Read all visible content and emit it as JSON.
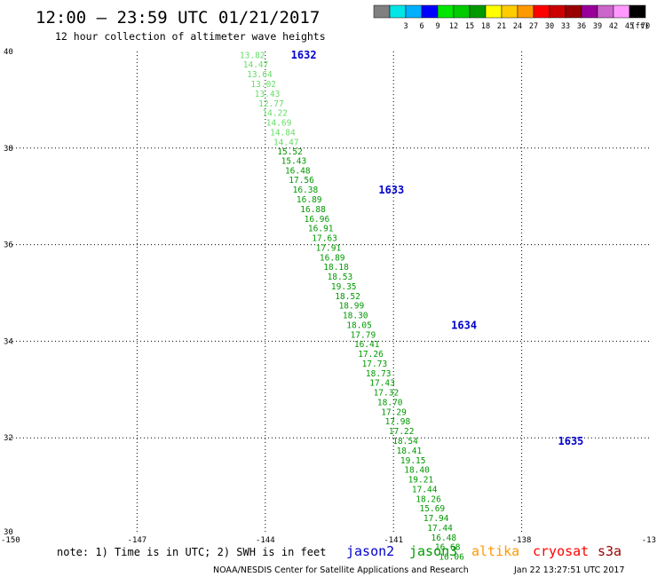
{
  "header": {
    "title": "12:00 – 23:59 UTC 01/21/2017",
    "subtitle": "12 hour collection of altimeter wave heights"
  },
  "legend_scale": {
    "unit": "(ft)",
    "bins": [
      {
        "label": "",
        "color": "#808080"
      },
      {
        "label": "3",
        "color": "#00e5e5"
      },
      {
        "label": "6",
        "color": "#00b0ff"
      },
      {
        "label": "9",
        "color": "#0000ff"
      },
      {
        "label": "12",
        "color": "#00e600"
      },
      {
        "label": "15",
        "color": "#00cc00"
      },
      {
        "label": "18",
        "color": "#009900"
      },
      {
        "label": "21",
        "color": "#ffff00"
      },
      {
        "label": "24",
        "color": "#ffcc00"
      },
      {
        "label": "27",
        "color": "#ff9900"
      },
      {
        "label": "30",
        "color": "#ff0000"
      },
      {
        "label": "33",
        "color": "#cc0000"
      },
      {
        "label": "36",
        "color": "#990000"
      },
      {
        "label": "39",
        "color": "#990099"
      },
      {
        "label": "42",
        "color": "#cc66cc"
      },
      {
        "label": "45",
        "color": "#ff99ff"
      },
      {
        "label": "70",
        "color": "#000000"
      }
    ]
  },
  "footer": {
    "note": "note: 1) Time is in UTC; 2) SWH is in feet",
    "satellites": [
      {
        "name": "jason2",
        "color": "#0000cc"
      },
      {
        "name": "jason3",
        "color": "#009900"
      },
      {
        "name": "altika",
        "color": "#ff9900"
      },
      {
        "name": "cryosat",
        "color": "#ff0000"
      },
      {
        "name": "s3a",
        "color": "#990000"
      }
    ],
    "credit": "NOAA/NESDIS Center for Satellite Applications and Research",
    "timestamp": "Jan 22 13:27:51 UTC 2017"
  },
  "chart_data": {
    "type": "scatter",
    "xlim": [
      -150,
      -135
    ],
    "ylim": [
      30,
      40
    ],
    "x_ticks": [
      "-150",
      "-147",
      "-144",
      "-141",
      "-138",
      "-13"
    ],
    "y_ticks": [
      "30",
      "32",
      "34",
      "36",
      "38",
      "40"
    ],
    "grid": true,
    "colors": {
      "light": "#66dd66",
      "dark": "#009900"
    },
    "track": [
      {
        "lon": -144.6,
        "lat": 39.92,
        "value": "13.82",
        "color": "light"
      },
      {
        "lon": -144.52,
        "lat": 39.72,
        "value": "14.47",
        "color": "light"
      },
      {
        "lon": -144.43,
        "lat": 39.52,
        "value": "13.64",
        "color": "light"
      },
      {
        "lon": -144.34,
        "lat": 39.32,
        "value": "13.02",
        "color": "light"
      },
      {
        "lon": -144.25,
        "lat": 39.12,
        "value": "13.43",
        "color": "light"
      },
      {
        "lon": -144.16,
        "lat": 38.92,
        "value": "12.77",
        "color": "light"
      },
      {
        "lon": -144.07,
        "lat": 38.72,
        "value": "14.22",
        "color": "light"
      },
      {
        "lon": -143.98,
        "lat": 38.52,
        "value": "14.69",
        "color": "light"
      },
      {
        "lon": -143.89,
        "lat": 38.32,
        "value": "14.84",
        "color": "light"
      },
      {
        "lon": -143.81,
        "lat": 38.12,
        "value": "14.47",
        "color": "light"
      },
      {
        "lon": -143.72,
        "lat": 37.92,
        "value": "15.52",
        "color": "dark"
      },
      {
        "lon": -143.63,
        "lat": 37.73,
        "value": "15.43",
        "color": "dark"
      },
      {
        "lon": -143.54,
        "lat": 37.53,
        "value": "16.48",
        "color": "dark"
      },
      {
        "lon": -143.45,
        "lat": 37.33,
        "value": "17.56",
        "color": "dark"
      },
      {
        "lon": -143.36,
        "lat": 37.13,
        "value": "16.38",
        "color": "dark"
      },
      {
        "lon": -143.27,
        "lat": 36.93,
        "value": "16.89",
        "color": "dark"
      },
      {
        "lon": -143.18,
        "lat": 36.73,
        "value": "16.88",
        "color": "dark"
      },
      {
        "lon": -143.09,
        "lat": 36.53,
        "value": "16.96",
        "color": "dark"
      },
      {
        "lon": -143.0,
        "lat": 36.33,
        "value": "16.91",
        "color": "dark"
      },
      {
        "lon": -142.91,
        "lat": 36.13,
        "value": "17.63",
        "color": "dark"
      },
      {
        "lon": -142.82,
        "lat": 35.93,
        "value": "17.91",
        "color": "dark"
      },
      {
        "lon": -142.73,
        "lat": 35.73,
        "value": "16.89",
        "color": "dark"
      },
      {
        "lon": -142.64,
        "lat": 35.53,
        "value": "18.18",
        "color": "dark"
      },
      {
        "lon": -142.55,
        "lat": 35.33,
        "value": "18.53",
        "color": "dark"
      },
      {
        "lon": -142.46,
        "lat": 35.13,
        "value": "19.35",
        "color": "dark"
      },
      {
        "lon": -142.37,
        "lat": 34.93,
        "value": "18.52",
        "color": "dark"
      },
      {
        "lon": -142.28,
        "lat": 34.73,
        "value": "18.99",
        "color": "dark"
      },
      {
        "lon": -142.19,
        "lat": 34.53,
        "value": "18.30",
        "color": "dark"
      },
      {
        "lon": -142.1,
        "lat": 34.33,
        "value": "18.05",
        "color": "dark"
      },
      {
        "lon": -142.01,
        "lat": 34.13,
        "value": "17.79",
        "color": "dark"
      },
      {
        "lon": -141.92,
        "lat": 33.93,
        "value": "16.41",
        "color": "dark"
      },
      {
        "lon": -141.83,
        "lat": 33.73,
        "value": "17.26",
        "color": "dark"
      },
      {
        "lon": -141.74,
        "lat": 33.53,
        "value": "17.73",
        "color": "dark"
      },
      {
        "lon": -141.65,
        "lat": 33.33,
        "value": "18.73",
        "color": "dark"
      },
      {
        "lon": -141.56,
        "lat": 33.13,
        "value": "17.43",
        "color": "dark"
      },
      {
        "lon": -141.47,
        "lat": 32.93,
        "value": "17.32",
        "color": "dark"
      },
      {
        "lon": -141.38,
        "lat": 32.73,
        "value": "18.70",
        "color": "dark"
      },
      {
        "lon": -141.29,
        "lat": 32.53,
        "value": "17.29",
        "color": "dark"
      },
      {
        "lon": -141.2,
        "lat": 32.33,
        "value": "17.98",
        "color": "dark"
      },
      {
        "lon": -141.11,
        "lat": 32.13,
        "value": "17.22",
        "color": "dark"
      },
      {
        "lon": -141.02,
        "lat": 31.93,
        "value": "18.54",
        "color": "dark"
      },
      {
        "lon": -140.93,
        "lat": 31.73,
        "value": "18.41",
        "color": "dark"
      },
      {
        "lon": -140.84,
        "lat": 31.53,
        "value": "19.15",
        "color": "dark"
      },
      {
        "lon": -140.75,
        "lat": 31.33,
        "value": "18.40",
        "color": "dark"
      },
      {
        "lon": -140.66,
        "lat": 31.13,
        "value": "19.21",
        "color": "dark"
      },
      {
        "lon": -140.57,
        "lat": 30.93,
        "value": "17.44",
        "color": "dark"
      },
      {
        "lon": -140.48,
        "lat": 30.73,
        "value": "18.26",
        "color": "dark"
      },
      {
        "lon": -140.39,
        "lat": 30.53,
        "value": "15.69",
        "color": "dark"
      },
      {
        "lon": -140.3,
        "lat": 30.33,
        "value": "17.94",
        "color": "dark"
      },
      {
        "lon": -140.21,
        "lat": 30.13,
        "value": "17.44",
        "color": "dark"
      },
      {
        "lon": -140.12,
        "lat": 29.93,
        "value": "16.48",
        "color": "dark"
      },
      {
        "lon": -140.03,
        "lat": 29.73,
        "value": "16.68",
        "color": "dark"
      },
      {
        "lon": -139.94,
        "lat": 29.53,
        "value": "16.06",
        "color": "dark"
      }
    ],
    "pass_times": [
      {
        "lon": -143.4,
        "lat": 39.93,
        "label": "1632"
      },
      {
        "lon": -141.35,
        "lat": 37.13,
        "label": "1633"
      },
      {
        "lon": -139.65,
        "lat": 34.33,
        "label": "1634"
      },
      {
        "lon": -137.15,
        "lat": 31.93,
        "label": "1635"
      }
    ]
  }
}
